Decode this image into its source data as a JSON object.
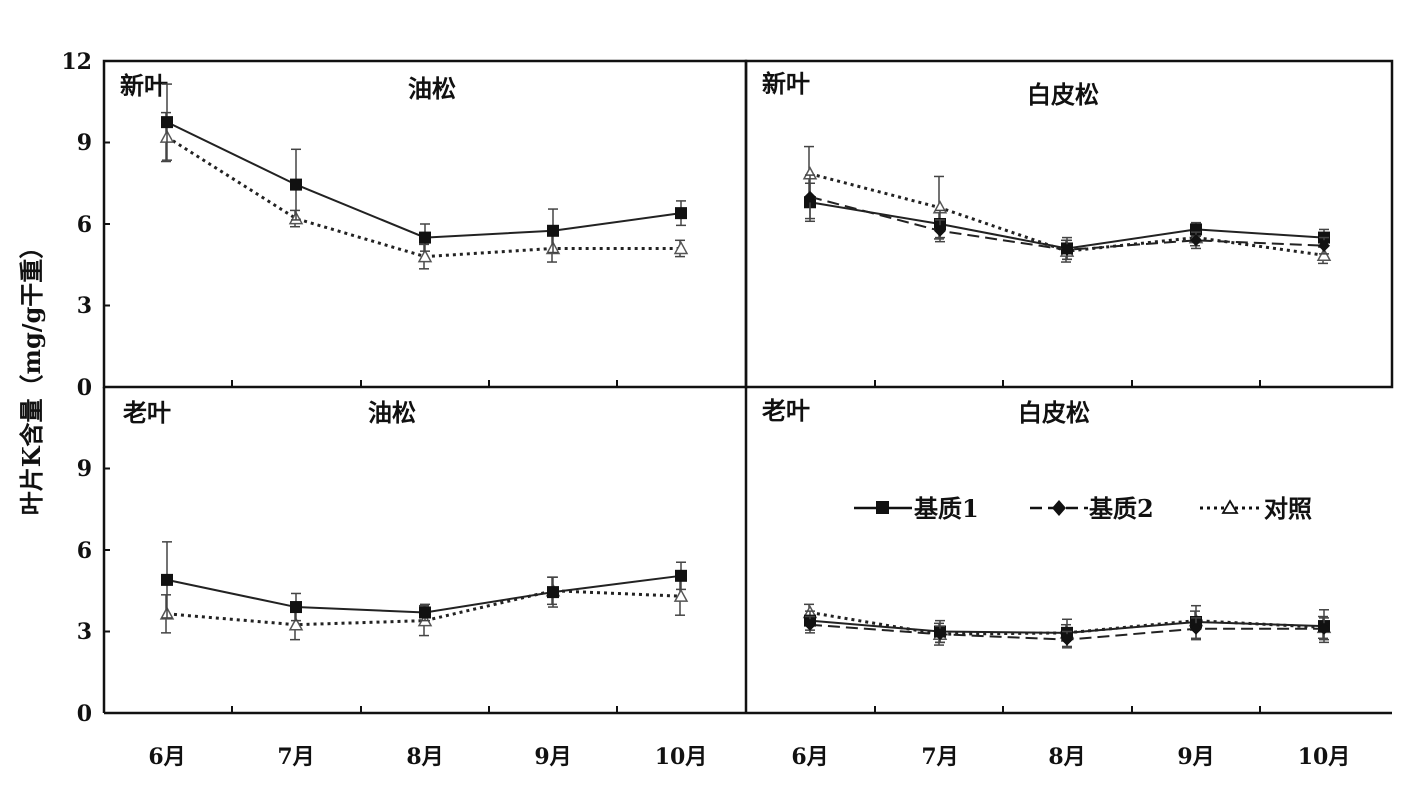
{
  "chart_data": {
    "type": "line",
    "ylabel": "叶片K含量（mg/g干重）",
    "categories": [
      "6月",
      "7月",
      "8月",
      "9月",
      "10月"
    ],
    "ylim": [
      0,
      12
    ],
    "yticks": [
      "0",
      "3",
      "6",
      "9",
      "12"
    ],
    "legend": [
      {
        "name": "基质1",
        "style": "solid",
        "marker": "square"
      },
      {
        "name": "基质2",
        "style": "dashed",
        "marker": "diamond"
      },
      {
        "name": "对照",
        "style": "dotted",
        "marker": "triangle-open"
      }
    ],
    "panels": [
      {
        "id": "top-left",
        "leaf": "新叶",
        "species": "油松",
        "series": [
          {
            "name": "基质1",
            "values": [
              9.75,
              7.45,
              5.5,
              5.75,
              6.4
            ],
            "errors": [
              1.4,
              1.3,
              0.5,
              0.8,
              0.45
            ]
          },
          {
            "name": "对照",
            "values": [
              9.2,
              6.2,
              4.8,
              5.1,
              5.1
            ],
            "errors": [
              0.9,
              0.3,
              0.45,
              0.5,
              0.3
            ]
          }
        ]
      },
      {
        "id": "top-right",
        "leaf": "新叶",
        "species": "白皮松",
        "series": [
          {
            "name": "基质1",
            "values": [
              6.8,
              6.0,
              5.1,
              5.8,
              5.5
            ],
            "errors": [
              0.7,
              0.5,
              0.4,
              0.25,
              0.3
            ]
          },
          {
            "name": "基质2",
            "values": [
              7.0,
              5.75,
              5.05,
              5.4,
              5.2
            ],
            "errors": [
              0.8,
              0.4,
              0.35,
              0.3,
              0.3
            ]
          },
          {
            "name": "对照",
            "values": [
              7.85,
              6.6,
              5.0,
              5.5,
              4.85
            ],
            "errors": [
              1.0,
              1.15,
              0.4,
              0.3,
              0.3
            ]
          }
        ]
      },
      {
        "id": "bottom-left",
        "leaf": "老叶",
        "species": "油松",
        "series": [
          {
            "name": "基质1",
            "values": [
              4.9,
              3.9,
              3.7,
              4.45,
              5.05
            ],
            "errors": [
              1.4,
              0.5,
              0.3,
              0.55,
              0.5
            ]
          },
          {
            "name": "对照",
            "values": [
              3.65,
              3.25,
              3.4,
              4.5,
              4.3
            ],
            "errors": [
              0.7,
              0.55,
              0.55,
              0.5,
              0.7
            ]
          }
        ]
      },
      {
        "id": "bottom-right",
        "leaf": "老叶",
        "species": "白皮松",
        "series": [
          {
            "name": "基质1",
            "values": [
              3.4,
              3.0,
              2.95,
              3.35,
              3.2
            ],
            "errors": [
              0.35,
              0.4,
              0.5,
              0.6,
              0.6
            ]
          },
          {
            "name": "基质2",
            "values": [
              3.25,
              2.9,
              2.7,
              3.1,
              3.1
            ],
            "errors": [
              0.3,
              0.3,
              0.3,
              0.4,
              0.4
            ]
          },
          {
            "name": "对照",
            "values": [
              3.7,
              2.9,
              2.95,
              3.4,
              3.15
            ],
            "errors": [
              0.3,
              0.4,
              0.3,
              0.35,
              0.4
            ]
          }
        ]
      }
    ]
  }
}
